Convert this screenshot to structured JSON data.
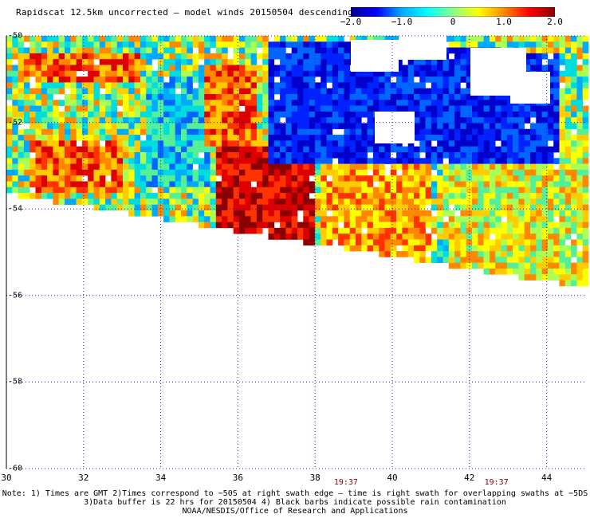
{
  "title": "Rapidscat 12.5km uncorrected — model winds 20150504 descending",
  "colorbar": {
    "ticks": [
      "−2.0",
      "−1.0",
      "0",
      "1.0",
      "2.0"
    ],
    "colors": [
      "#00008b",
      "#0000ff",
      "#00aaff",
      "#00ffff",
      "#88ff88",
      "#ffff00",
      "#ff8800",
      "#ff0000",
      "#8b0000"
    ]
  },
  "map": {
    "lon_range": [
      30,
      45
    ],
    "lat_range": [
      -60,
      -50
    ],
    "lon_ticks": [
      "30",
      "32",
      "34",
      "36",
      "38",
      "40",
      "42",
      "44"
    ],
    "lat_ticks": [
      "-50",
      "-52",
      "-54",
      "-56",
      "-58",
      "-60"
    ],
    "grid": "dotted",
    "swath_times": [
      {
        "label": "19:37",
        "lon": 38.8
      },
      {
        "label": "19:37",
        "lon": 42.7
      }
    ]
  },
  "notes": [
    "Note: 1) Times are GMT 2)Times correspond to −50S at right swath edge — time is right swath for overlapping swaths at −5DS",
    "3)Data buffer is 22 hrs for 20150504 4) Black barbs indicate possible rain contamination",
    "NOAA/NESDIS/Office of Research and Applications"
  ]
}
